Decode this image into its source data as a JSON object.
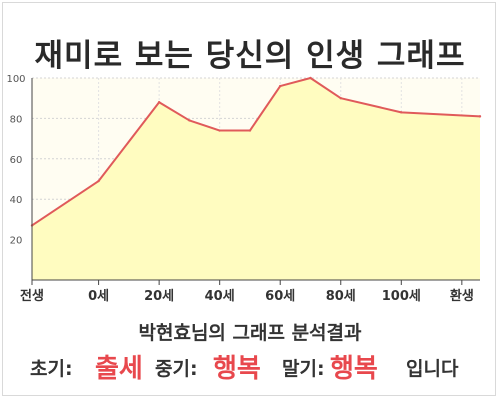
{
  "title": "재미로 보는 당신의 인생 그래프",
  "chart_data": {
    "type": "area",
    "title": "재미로 보는 당신의 인생 그래프",
    "xlabel": "",
    "ylabel": "",
    "x_ticks": [
      {
        "label": "전생",
        "age": -22
      },
      {
        "label": "0세",
        "age": 0
      },
      {
        "label": "20세",
        "age": 20
      },
      {
        "label": "40세",
        "age": 40
      },
      {
        "label": "60세",
        "age": 60
      },
      {
        "label": "80세",
        "age": 80
      },
      {
        "label": "100세",
        "age": 100
      },
      {
        "label": "환생",
        "age": 120
      }
    ],
    "xlim": [
      -22,
      126
    ],
    "ylim": [
      0,
      100
    ],
    "y_ticks": [
      20,
      40,
      60,
      80,
      100
    ],
    "grid": true,
    "series": [
      {
        "name": "",
        "points": [
          {
            "x": -22,
            "y": 27
          },
          {
            "x": 0,
            "y": 49
          },
          {
            "x": 20,
            "y": 88
          },
          {
            "x": 30,
            "y": 79
          },
          {
            "x": 40,
            "y": 74
          },
          {
            "x": 50,
            "y": 74
          },
          {
            "x": 60,
            "y": 96
          },
          {
            "x": 70,
            "y": 100
          },
          {
            "x": 80,
            "y": 90
          },
          {
            "x": 100,
            "y": 83
          },
          {
            "x": 126,
            "y": 81
          }
        ]
      }
    ],
    "colors": {
      "line": "#e05a5a",
      "fill": "#fffcc0",
      "plot_bg": "#fffdf2"
    }
  },
  "result": {
    "heading": "박현효님의 그래프 분석결과",
    "early_label": "초기:",
    "early_value": "출세",
    "mid_label": "중기:",
    "mid_value": "행복",
    "late_label": "말기:",
    "late_value": "행복",
    "ending": "입니다"
  },
  "colors": {
    "accent": "#e8484d",
    "text": "#333333"
  }
}
